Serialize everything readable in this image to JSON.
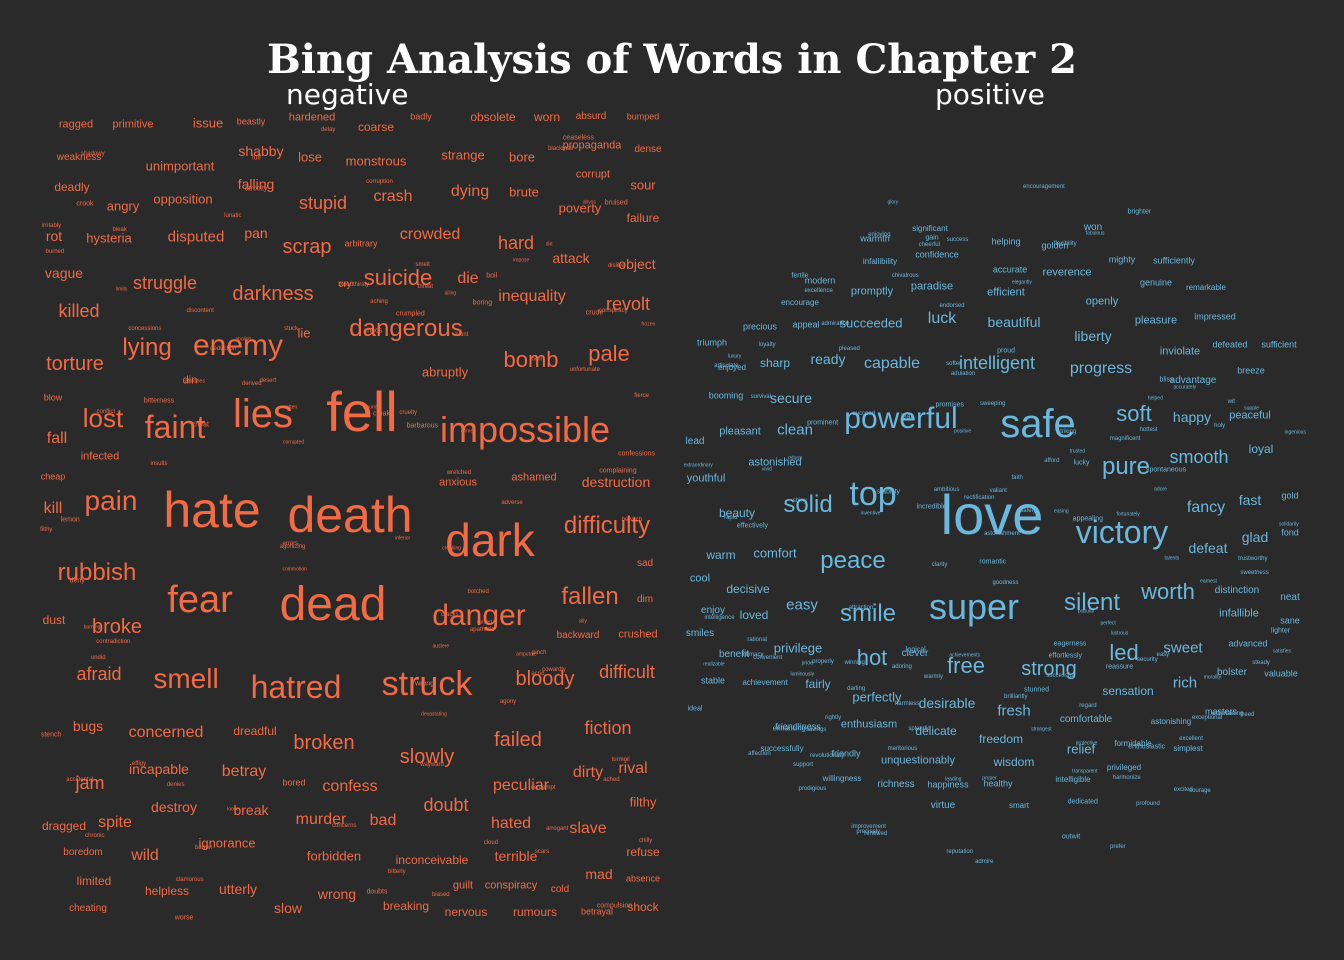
{
  "title": "Bing Analysis of Words in Chapter 2",
  "labels": {
    "negative": "negative",
    "positive": "positive"
  },
  "colors": {
    "background": "#2a2a2a",
    "negative": "#f26b45",
    "positive": "#6ab8de",
    "title": "#ffffff"
  },
  "negative_words": [
    "fell",
    "death",
    "hate",
    "dead",
    "dark",
    "lies",
    "impossible",
    "fear",
    "hatred",
    "struck",
    "danger",
    "enemy",
    "faint",
    "difficulty",
    "smell",
    "dangerous",
    "rubbish",
    "lost",
    "pain",
    "fallen",
    "lying",
    "bomb",
    "darkness",
    "suicide",
    "pale",
    "scrap",
    "difficult",
    "torture",
    "revolt",
    "bloody",
    "stupid",
    "killed",
    "struggle",
    "hard",
    "inequality",
    "crowded",
    "broke",
    "afraid",
    "concerned",
    "failed",
    "fiction",
    "slowly",
    "broken",
    "crash",
    "dying",
    "die",
    "jam",
    "peculiar",
    "confess",
    "doubt",
    "murder",
    "spite",
    "bad",
    "wild",
    "slave",
    "hated",
    "betray",
    "incapable",
    "destroy",
    "break",
    "dirty",
    "rival",
    "terrible",
    "mad",
    "wrong",
    "utterly",
    "helpless",
    "limited",
    "forbidden",
    "inconceivable",
    "slow",
    "breaking",
    "nervous",
    "rumours",
    "shock",
    "refuse",
    "conspiracy",
    "guilt",
    "cheating",
    "boredom",
    "dragged",
    "ignorance",
    "filthy",
    "sour",
    "failure",
    "object",
    "poverty",
    "corrupt",
    "attack",
    "angry",
    "opposition",
    "falling",
    "unimportant",
    "shabby",
    "monstrous",
    "strange",
    "lose",
    "coarse",
    "worn",
    "obsolete",
    "absurd",
    "bumped",
    "propaganda",
    "dense",
    "hardened",
    "issue",
    "primitive",
    "ragged",
    "beastly",
    "badly",
    "weakness",
    "deadly",
    "rot",
    "hysteria",
    "disputed",
    "pan",
    "vague",
    "arbitrary",
    "cry",
    "brute",
    "bore",
    "abruptly",
    "lie",
    "din",
    "anxious",
    "ashamed",
    "destruction",
    "infected",
    "fall",
    "kill",
    "dust",
    "blow",
    "cheap",
    "crushed",
    "backward",
    "sad",
    "dim",
    "bugs",
    "dreadful",
    "filthy",
    "boring",
    "bored",
    "absence",
    "cold",
    "betrayal",
    "dirt",
    "smelt",
    "pinch",
    "concerns",
    "bitterly",
    "chronic",
    "loose",
    "blackmail",
    "insults",
    "austere",
    "accidental",
    "errors",
    "chaos",
    "botched",
    "abolish",
    "agony",
    "acrid",
    "blunt",
    "cruelty",
    "unfortunate",
    "boil",
    "barbarous",
    "inferior",
    "doubts",
    "threat",
    "cracks",
    "stench",
    "scars",
    "confessions",
    "irritably",
    "contempt",
    "complaining",
    "worse",
    "dislike",
    "deny",
    "discontent",
    "effigy",
    "cowardly",
    "contradiction",
    "commotion",
    "clamorous",
    "conspiracy",
    "concessions",
    "crude",
    "crook",
    "derived",
    "apathetic",
    "creak",
    "impose",
    "barren",
    "fierce",
    "lull",
    "adverse",
    "arrogant",
    "amputate",
    "atrocity",
    "conflict",
    "abyss",
    "delay",
    "cloud",
    "denies",
    "lunatic",
    "stuck",
    "burned",
    "rotten",
    "devastating",
    "frozen",
    "corrupted",
    "compulsion",
    "turmoil",
    "wayward",
    "bruised",
    "undid",
    "bitterness",
    "ached",
    "bleak",
    "aching",
    "silly",
    "atrocities",
    "bent",
    "cheat",
    "crime",
    "biased",
    "wretched",
    "cursed",
    "agonizing",
    "deduction",
    "limits",
    "desert",
    "crumpled",
    "wound",
    "wrong",
    "corruption",
    "ceaseless",
    "burning",
    "shadowy",
    "creaking",
    "bewitch",
    "lemon",
    "ailing",
    "bloodthirsty",
    "chilly"
  ],
  "positive_words": [
    "love",
    "safe",
    "super",
    "powerful",
    "top",
    "victory",
    "smile",
    "peace",
    "pure",
    "silent",
    "solid",
    "free",
    "hot",
    "led",
    "worth",
    "strong",
    "smooth",
    "soft",
    "intelligent",
    "progress",
    "fancy",
    "defeat",
    "glad",
    "happy",
    "fast",
    "sweet",
    "easy",
    "rich",
    "desirable",
    "capable",
    "fresh",
    "perfectly",
    "luck",
    "beautiful",
    "liberty",
    "succeeded",
    "ready",
    "sharp",
    "secure",
    "clean",
    "comfort",
    "loved",
    "privilege",
    "fairly",
    "enthusiasm",
    "delicate",
    "freedom",
    "wisdom",
    "relief",
    "sensation",
    "comfortable",
    "unquestionably",
    "virtue",
    "happiness",
    "healthy",
    "richness",
    "friendly",
    "willingness",
    "successfully",
    "friendliness",
    "achievement",
    "clever",
    "benefit",
    "decisive",
    "enjoy",
    "smiles",
    "cool",
    "warm",
    "beauty",
    "youthful",
    "astonished",
    "pleasant",
    "lead",
    "booming",
    "triumph",
    "precious",
    "appeal",
    "promptly",
    "paradise",
    "efficient",
    "openly",
    "reverence",
    "accurate",
    "golden",
    "won",
    "warmth",
    "confidence",
    "helping",
    "modern",
    "encourage",
    "significant",
    "infallibility",
    "pleasure",
    "inviolate",
    "advantage",
    "impressed",
    "defeated",
    "sufficient",
    "sufficiently",
    "mighty",
    "genuine",
    "remarkable",
    "distinction",
    "infallible",
    "advanced",
    "valuable",
    "masters",
    "formidable",
    "privileged",
    "intelligible",
    "simplest",
    "astonishing",
    "gold",
    "fond",
    "neat",
    "sane",
    "loyal",
    "peaceful",
    "breeze",
    "bolster",
    "ideal",
    "stable",
    "enjoyed",
    "smart",
    "ambitious",
    "entertaining",
    "shiny",
    "proper",
    "luxury",
    "succeed",
    "support",
    "romantic",
    "strongest",
    "splendid",
    "promises",
    "inventive",
    "regard",
    "success",
    "warmly",
    "lean",
    "goodness",
    "flexibility",
    "gain",
    "earnest",
    "luminously",
    "rectification",
    "wit",
    "excited",
    "pride",
    "prodigious",
    "popular",
    "magnificent",
    "safely",
    "proud",
    "fortunately",
    "winning",
    "logical",
    "excellence",
    "dedicated",
    "talents",
    "easing",
    "darling",
    "softer",
    "achievements",
    "glory",
    "articulate",
    "chivalrous",
    "astonishment",
    "brilliantly",
    "appealing",
    "accurately",
    "easy",
    "adore",
    "fabulous",
    "rapid",
    "savings",
    "steady",
    "helped",
    "loyalty",
    "faith",
    "exceptional",
    "adoring",
    "prefer",
    "revolutionary",
    "spontaneous",
    "lighter",
    "extraordinary",
    "leading",
    "reputation",
    "trustworthy",
    "vivid",
    "satisfies",
    "rational",
    "sweetness",
    "properly",
    "supple",
    "sweeping",
    "profound",
    "successful",
    "prominent",
    "improvement",
    "intelligence",
    "encouragement",
    "outwit",
    "harmonize",
    "positive",
    "survival",
    "transparent",
    "striking",
    "solidarity",
    "lucky",
    "realizable",
    "morality",
    "ingenious",
    "security",
    "renewed",
    "elegantly",
    "adulation",
    "intimacy",
    "afford",
    "trusted",
    "cheerful",
    "attraction",
    "fertile",
    "admire",
    "affection",
    "reform",
    "brighter",
    "effortlessly",
    "endorsed",
    "entrancing",
    "holy",
    "rightly",
    "lustrous",
    "incredible",
    "courage",
    "hottest",
    "convenient",
    "eagerness",
    "valiant",
    "freed",
    "bliss",
    "enthusiastic",
    "admiration",
    "stunned",
    "protective",
    "precisely",
    "harmless",
    "enjoying",
    "pleased",
    "excellent",
    "effectively",
    "stability",
    "perfect",
    "meritorious",
    "reassure",
    "clarity"
  ]
}
